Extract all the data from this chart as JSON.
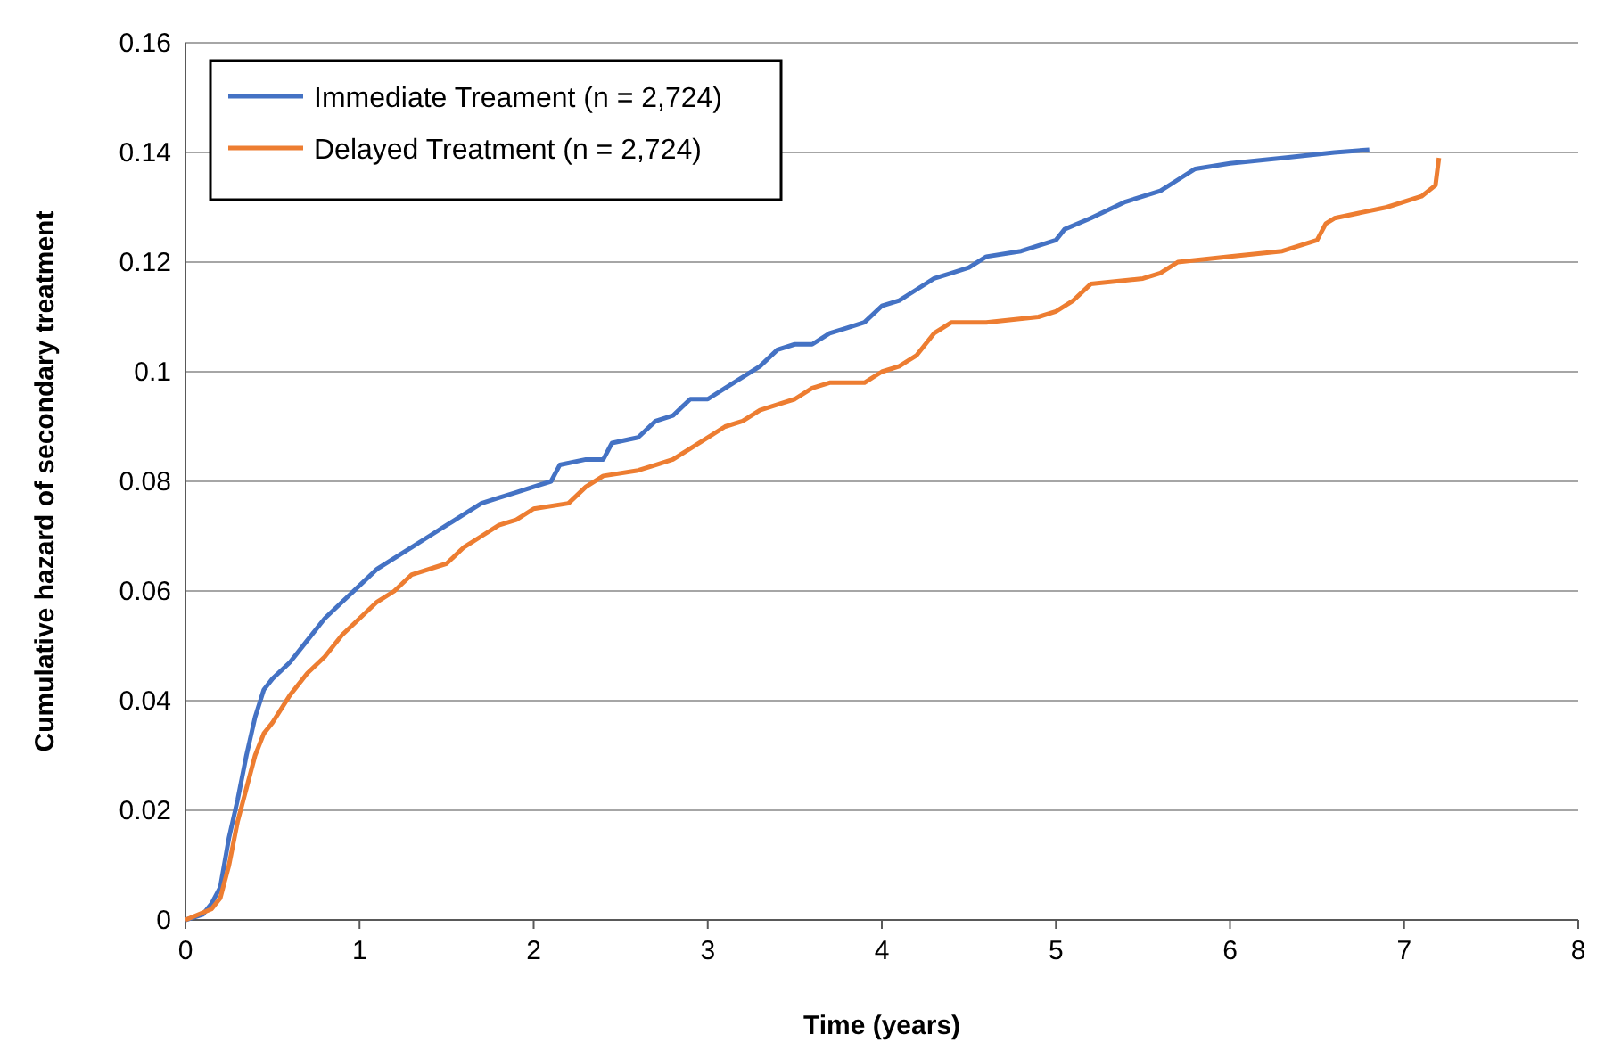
{
  "chart_data": {
    "type": "line",
    "xlabel": "Time (years)",
    "ylabel": "Cumulative hazard of secondary treatment",
    "xlim": [
      0,
      8
    ],
    "xticks": [
      0,
      1,
      2,
      3,
      4,
      5,
      6,
      7,
      8
    ],
    "ylim": [
      0,
      0.16
    ],
    "yticks": [
      0,
      0.02,
      0.04,
      0.06,
      0.08,
      0.1,
      0.12,
      0.14,
      0.16
    ],
    "grid": "y",
    "legend": "top left",
    "marker": "none",
    "line_style": "solid",
    "series": [
      {
        "name": "Immediate Treament (n = 2,724)",
        "color": "#4472c4",
        "x": [
          0,
          0.1,
          0.15,
          0.2,
          0.25,
          0.3,
          0.35,
          0.4,
          0.45,
          0.5,
          0.6,
          0.7,
          0.8,
          0.9,
          1.0,
          1.1,
          1.2,
          1.3,
          1.4,
          1.5,
          1.6,
          1.7,
          1.8,
          1.9,
          2.0,
          2.1,
          2.15,
          2.3,
          2.4,
          2.45,
          2.6,
          2.7,
          2.8,
          2.9,
          3.0,
          3.1,
          3.2,
          3.3,
          3.4,
          3.5,
          3.6,
          3.7,
          3.8,
          3.9,
          4.0,
          4.1,
          4.2,
          4.3,
          4.4,
          4.5,
          4.6,
          4.8,
          5.0,
          5.05,
          5.2,
          5.4,
          5.6,
          5.7,
          5.8,
          6.0,
          6.3,
          6.6,
          6.8
        ],
        "values": [
          0,
          0.001,
          0.003,
          0.006,
          0.015,
          0.022,
          0.03,
          0.037,
          0.042,
          0.044,
          0.047,
          0.051,
          0.055,
          0.058,
          0.061,
          0.064,
          0.066,
          0.068,
          0.07,
          0.072,
          0.074,
          0.076,
          0.077,
          0.078,
          0.079,
          0.08,
          0.083,
          0.084,
          0.084,
          0.087,
          0.088,
          0.091,
          0.092,
          0.095,
          0.095,
          0.097,
          0.099,
          0.101,
          0.104,
          0.105,
          0.105,
          0.107,
          0.108,
          0.109,
          0.112,
          0.113,
          0.115,
          0.117,
          0.118,
          0.119,
          0.121,
          0.122,
          0.124,
          0.126,
          0.128,
          0.131,
          0.133,
          0.135,
          0.137,
          0.138,
          0.139,
          0.14,
          0.1405
        ]
      },
      {
        "name": "Delayed Treatment (n = 2,724)",
        "color": "#ed7d31",
        "x": [
          0,
          0.15,
          0.2,
          0.25,
          0.3,
          0.35,
          0.4,
          0.45,
          0.5,
          0.6,
          0.7,
          0.8,
          0.9,
          1.0,
          1.1,
          1.2,
          1.3,
          1.5,
          1.6,
          1.7,
          1.8,
          1.9,
          2.0,
          2.2,
          2.3,
          2.4,
          2.6,
          2.7,
          2.8,
          2.9,
          3.0,
          3.1,
          3.2,
          3.3,
          3.4,
          3.5,
          3.6,
          3.7,
          3.9,
          4.0,
          4.1,
          4.2,
          4.3,
          4.4,
          4.6,
          4.9,
          5.0,
          5.1,
          5.2,
          5.5,
          5.6,
          5.7,
          6.0,
          6.3,
          6.5,
          6.55,
          6.6,
          6.9,
          7.1,
          7.18,
          7.2
        ],
        "values": [
          0,
          0.002,
          0.004,
          0.01,
          0.018,
          0.024,
          0.03,
          0.034,
          0.036,
          0.041,
          0.045,
          0.048,
          0.052,
          0.055,
          0.058,
          0.06,
          0.063,
          0.065,
          0.068,
          0.07,
          0.072,
          0.073,
          0.075,
          0.076,
          0.079,
          0.081,
          0.082,
          0.083,
          0.084,
          0.086,
          0.088,
          0.09,
          0.091,
          0.093,
          0.094,
          0.095,
          0.097,
          0.098,
          0.098,
          0.1,
          0.101,
          0.103,
          0.107,
          0.109,
          0.109,
          0.11,
          0.111,
          0.113,
          0.116,
          0.117,
          0.118,
          0.12,
          0.121,
          0.122,
          0.124,
          0.127,
          0.128,
          0.13,
          0.132,
          0.134,
          0.139
        ]
      }
    ]
  }
}
